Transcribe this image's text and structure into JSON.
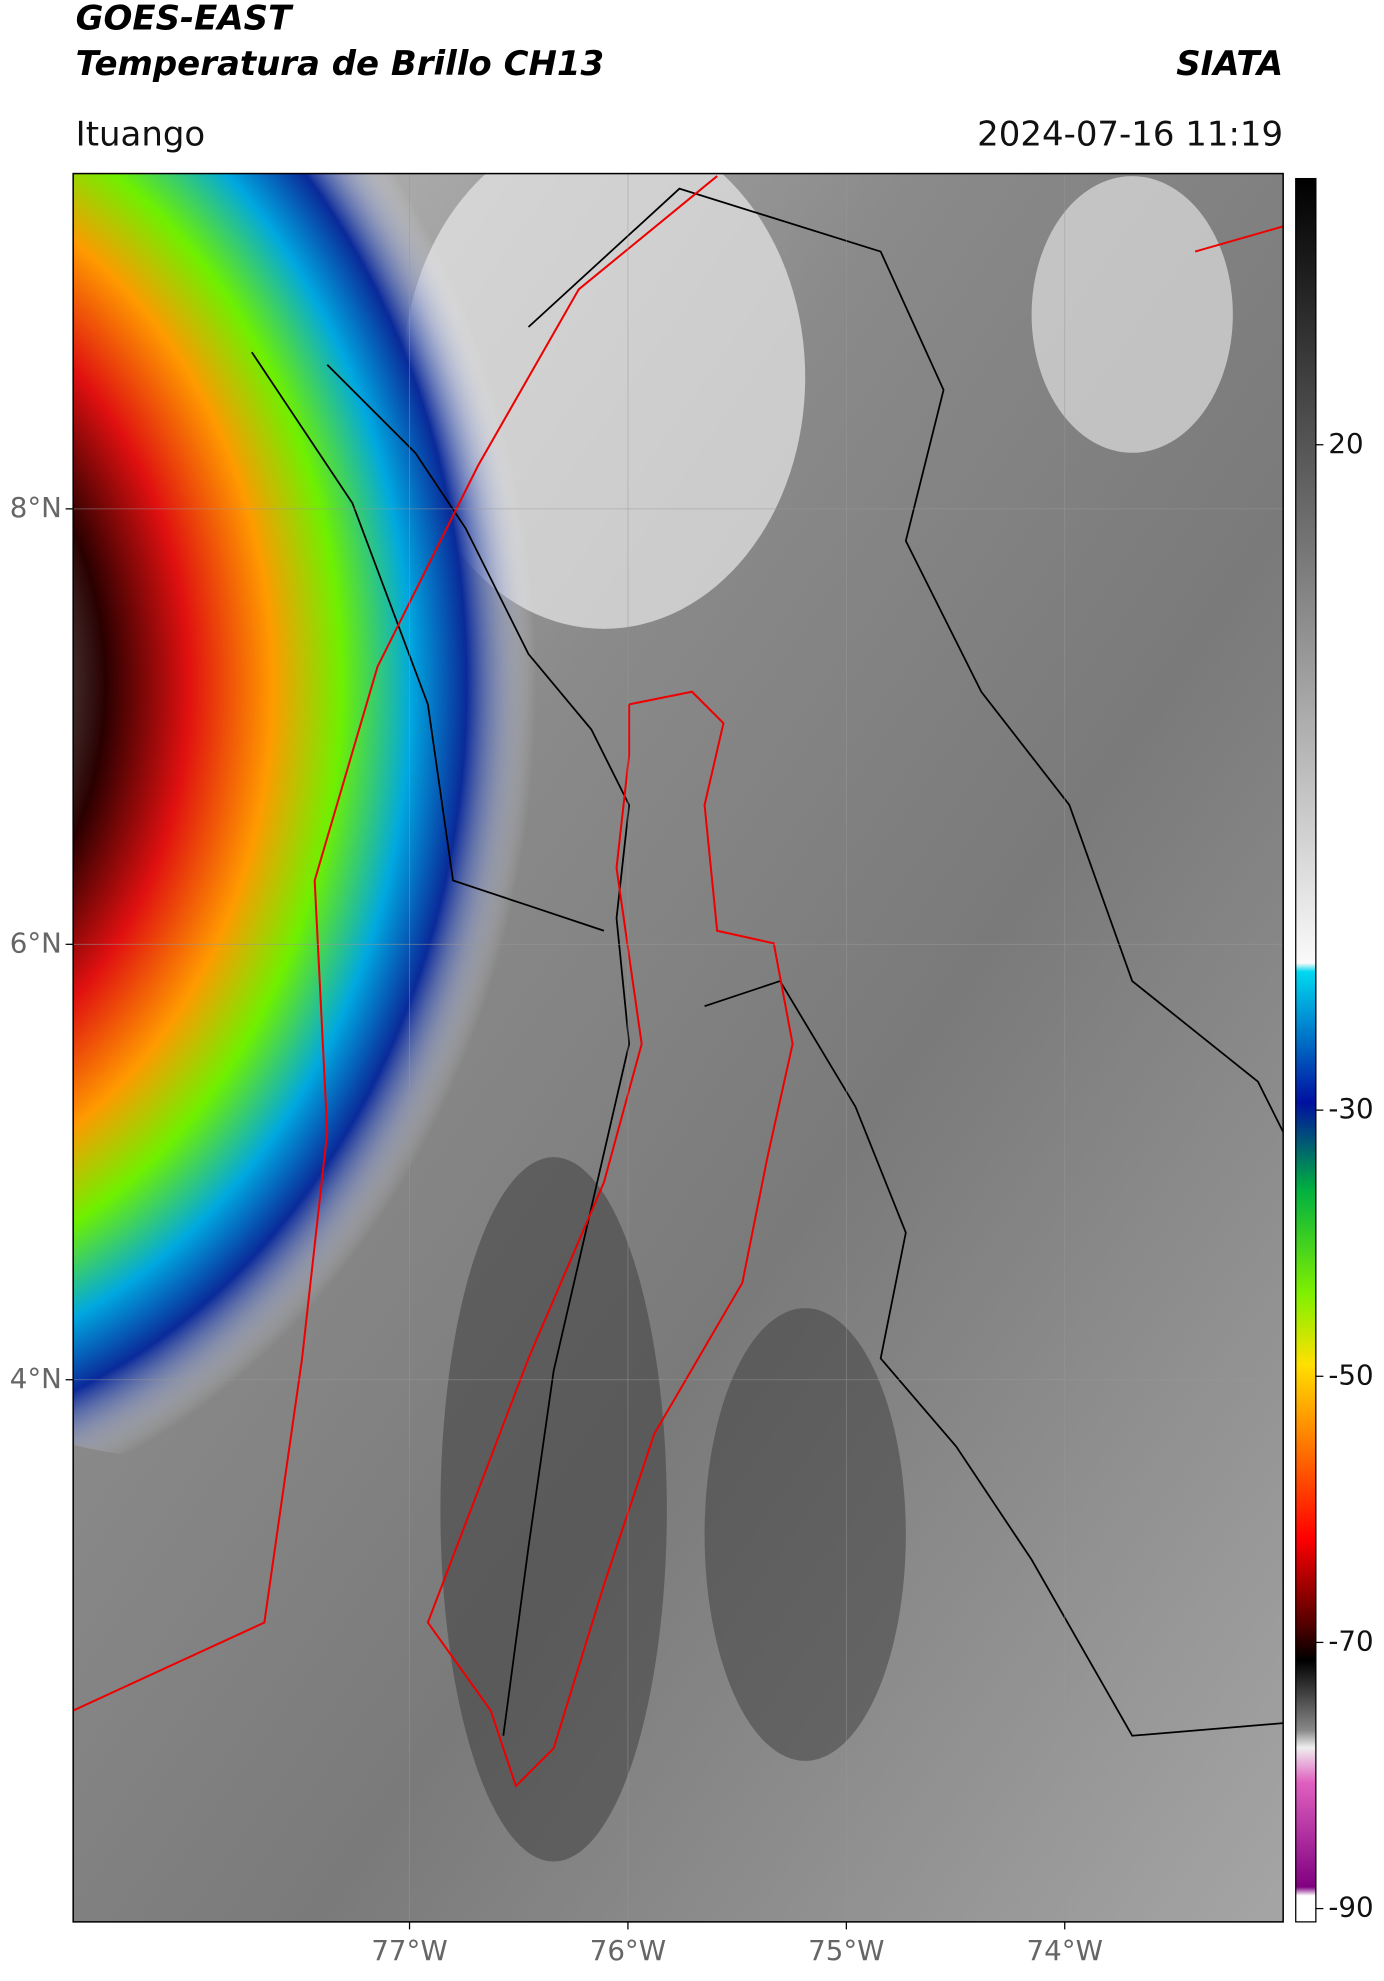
{
  "map": {
    "title": "GOES-EAST",
    "subtitle": "Temperatura de Brillo CH13",
    "agency": "SIATA",
    "location": "Ituango",
    "datetime": "2024-07-16 11:19",
    "xlim": [
      -78.54,
      -73.0
    ],
    "ylim": [
      1.51,
      9.54
    ],
    "lat_ticks": [
      {
        "value": 8,
        "label": "8°N"
      },
      {
        "value": 6,
        "label": "6°N"
      },
      {
        "value": 4,
        "label": "4°N"
      }
    ],
    "lon_ticks": [
      {
        "value": -77,
        "label": "77°W"
      },
      {
        "value": -76,
        "label": "76°W"
      },
      {
        "value": -75,
        "label": "75°W"
      },
      {
        "value": -74,
        "label": "74°W"
      }
    ],
    "colorbar": {
      "lim": [
        -91,
        40
      ],
      "ticks": [
        20,
        -30,
        -50,
        -70,
        -90
      ]
    }
  }
}
